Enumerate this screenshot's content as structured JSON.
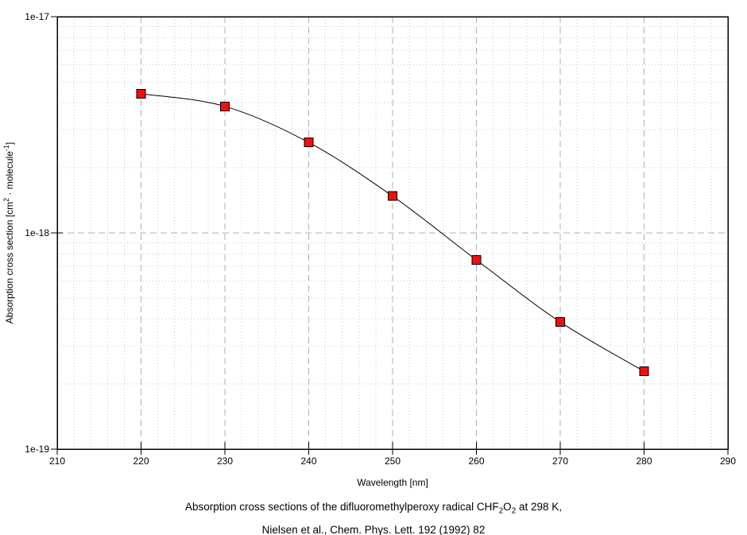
{
  "chart_data": {
    "type": "line",
    "series_name": "absorption-cross-section",
    "x": [
      220,
      230,
      240,
      250,
      260,
      270,
      280
    ],
    "y": [
      4.4e-18,
      3.85e-18,
      2.62e-18,
      1.48e-18,
      7.5e-19,
      3.87e-19,
      2.29e-19
    ],
    "x_range": [
      210,
      290
    ],
    "y_range": [
      1e-19,
      1e-17
    ],
    "y_scale": "log",
    "x_major_step": 10,
    "x_minor_step": 2,
    "grid": true,
    "x_tick_labels": [
      "210",
      "220",
      "230",
      "240",
      "250",
      "260",
      "270",
      "280",
      "290"
    ],
    "y_ticks": [
      {
        "value": 1e-17,
        "label": "1e-17"
      },
      {
        "value": 1e-18,
        "label": "1e-18"
      },
      {
        "value": 1e-19,
        "label": "1e-19"
      }
    ],
    "xlabel": "Wavelength [nm]",
    "ylabel_segments": [
      {
        "t": "Absorption cross section [cm"
      },
      {
        "t": "2",
        "sup": true
      },
      {
        "t": " · molecule"
      },
      {
        "t": "-1",
        "sup": true
      },
      {
        "t": "]"
      }
    ],
    "colors": {
      "minor_grid": "#c9c9c9",
      "major_grid": "#b0b0b0",
      "frame": "#000000",
      "line": "#000000",
      "marker_fill": "#ee1111",
      "marker_stroke": "#000000",
      "text": "#000000"
    },
    "marker": {
      "shape": "square",
      "size": 11
    }
  },
  "caption": {
    "line1_segments": [
      {
        "t": "Absorption cross sections of the difluoromethylperoxy radical CHF"
      },
      {
        "t": "2",
        "sub": true
      },
      {
        "t": "O"
      },
      {
        "t": "2",
        "sub": true
      },
      {
        "t": " at 298 K,"
      }
    ],
    "line2": "Nielsen et al., Chem. Phys. Lett. 192 (1992) 82"
  }
}
